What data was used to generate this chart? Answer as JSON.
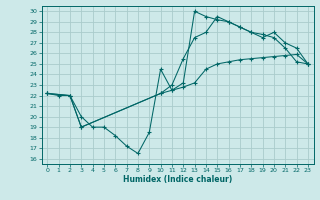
{
  "xlabel": "Humidex (Indice chaleur)",
  "background_color": "#cde9e9",
  "line_color": "#006666",
  "grid_color": "#b0d8d8",
  "xlim": [
    -0.5,
    23.5
  ],
  "ylim": [
    15.5,
    30.5
  ],
  "xticks": [
    0,
    1,
    2,
    3,
    4,
    5,
    6,
    7,
    8,
    9,
    10,
    11,
    12,
    13,
    14,
    15,
    16,
    17,
    18,
    19,
    20,
    21,
    22,
    23
  ],
  "yticks": [
    16,
    17,
    18,
    19,
    20,
    21,
    22,
    23,
    24,
    25,
    26,
    27,
    28,
    29,
    30
  ],
  "line1_x": [
    0,
    1,
    2,
    3,
    4,
    5,
    6,
    7,
    8,
    9,
    10,
    11,
    12,
    13,
    14,
    15,
    16,
    17,
    18,
    19,
    20,
    21,
    22,
    23
  ],
  "line1_y": [
    22.2,
    22,
    22,
    20,
    19,
    19,
    18.2,
    17.2,
    16.5,
    18.5,
    24.5,
    22.5,
    23.2,
    30,
    29.5,
    29.2,
    29,
    28.5,
    28,
    27.8,
    27.5,
    26.5,
    25.2,
    25
  ],
  "line2_x": [
    0,
    2,
    3,
    10,
    11,
    12,
    13,
    14,
    15,
    16,
    17,
    18,
    19,
    20,
    21,
    22,
    23
  ],
  "line2_y": [
    22.2,
    22,
    19,
    22.2,
    23,
    25.5,
    27.5,
    28,
    29.5,
    29,
    28.5,
    28,
    27.5,
    28,
    27,
    26.5,
    25
  ],
  "line3_x": [
    0,
    2,
    3,
    10,
    11,
    12,
    13,
    14,
    15,
    16,
    17,
    18,
    19,
    20,
    21,
    22,
    23
  ],
  "line3_y": [
    22.2,
    22,
    19,
    22.2,
    22.5,
    22.8,
    23.2,
    24.5,
    25,
    25.2,
    25.4,
    25.5,
    25.6,
    25.7,
    25.8,
    25.9,
    25
  ]
}
